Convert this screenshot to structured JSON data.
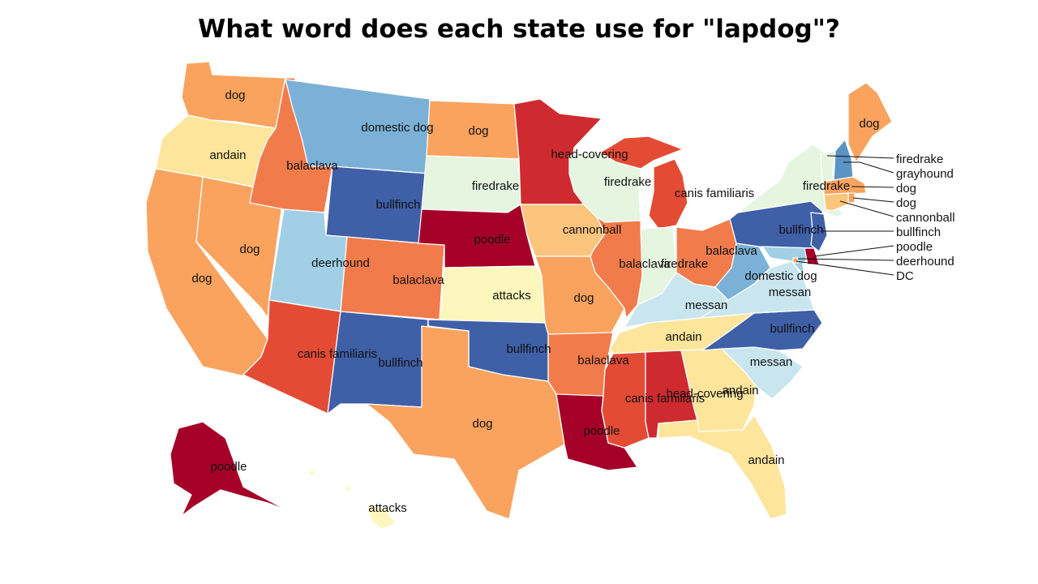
{
  "title": "What word does each state use for \"lapdog\"?",
  "colors": {
    "dog": "#f9a35e",
    "andain": "#fde59c",
    "domestic_dog": "#7bb1d6",
    "balaclava": "#f27b4c",
    "firedrake": "#e5f5e0",
    "head_covering": "#cf2a2f",
    "canis_familiaris": "#e34b35",
    "bullfinch": "#3f5fa7",
    "poodle": "#a50028",
    "deerhound": "#a1d0e6",
    "cannonball": "#fcc47c",
    "attacks": "#fdf7bd",
    "messan": "#c9e6ef",
    "grayhound": "#5b93c5",
    "dc": "#f9a35e"
  },
  "states": [
    {
      "id": "WA",
      "label": "dog",
      "color": "dog"
    },
    {
      "id": "OR",
      "label": "andain",
      "color": "andain"
    },
    {
      "id": "CA",
      "label": "dog",
      "color": "dog"
    },
    {
      "id": "NV",
      "label": "dog",
      "color": "dog"
    },
    {
      "id": "ID",
      "label": "balaclava",
      "color": "balaclava"
    },
    {
      "id": "MT",
      "label": "domestic dog",
      "color": "domestic_dog"
    },
    {
      "id": "WY",
      "label": "bullfinch",
      "color": "bullfinch"
    },
    {
      "id": "UT",
      "label": "deerhound",
      "color": "deerhound"
    },
    {
      "id": "CO",
      "label": "balaclava",
      "color": "balaclava"
    },
    {
      "id": "AZ",
      "label": "canis familiaris",
      "color": "canis_familiaris"
    },
    {
      "id": "NM",
      "label": "bullfinch",
      "color": "bullfinch"
    },
    {
      "id": "ND",
      "label": "dog",
      "color": "dog"
    },
    {
      "id": "SD",
      "label": "firedrake",
      "color": "firedrake"
    },
    {
      "id": "NE",
      "label": "poodle",
      "color": "poodle"
    },
    {
      "id": "KS",
      "label": "attacks",
      "color": "attacks"
    },
    {
      "id": "OK",
      "label": "bullfinch",
      "color": "bullfinch"
    },
    {
      "id": "TX",
      "label": "dog",
      "color": "dog"
    },
    {
      "id": "MN",
      "label": "head-covering",
      "color": "head_covering"
    },
    {
      "id": "IA",
      "label": "cannonball",
      "color": "cannonball"
    },
    {
      "id": "MO",
      "label": "dog",
      "color": "dog"
    },
    {
      "id": "AR",
      "label": "balaclava",
      "color": "balaclava"
    },
    {
      "id": "LA",
      "label": "poodle",
      "color": "poodle"
    },
    {
      "id": "WI",
      "label": "firedrake",
      "color": "firedrake"
    },
    {
      "id": "IL",
      "label": "balaclava",
      "color": "balaclava"
    },
    {
      "id": "MI",
      "label": "canis familiaris",
      "color": "canis_familiaris"
    },
    {
      "id": "IN",
      "label": "firedrake",
      "color": "firedrake"
    },
    {
      "id": "OH",
      "label": "balaclava",
      "color": "balaclava"
    },
    {
      "id": "KY",
      "label": "messan",
      "color": "messan"
    },
    {
      "id": "TN",
      "label": "andain",
      "color": "andain"
    },
    {
      "id": "MS",
      "label": "canis familiaris",
      "color": "canis_familiaris"
    },
    {
      "id": "AL",
      "label": "head-covering",
      "color": "head_covering"
    },
    {
      "id": "GA",
      "label": "andain",
      "color": "andain"
    },
    {
      "id": "FL",
      "label": "andain",
      "color": "andain"
    },
    {
      "id": "SC",
      "label": "messan",
      "color": "messan"
    },
    {
      "id": "NC",
      "label": "bullfinch",
      "color": "bullfinch"
    },
    {
      "id": "VA",
      "label": "messan",
      "color": "messan"
    },
    {
      "id": "WV",
      "label": "domestic dog",
      "color": "domestic_dog"
    },
    {
      "id": "PA",
      "label": "bullfinch",
      "color": "bullfinch"
    },
    {
      "id": "NY",
      "label": "firedrake",
      "color": "firedrake"
    },
    {
      "id": "ME",
      "label": "dog",
      "color": "dog"
    },
    {
      "id": "AK",
      "label": "poodle",
      "color": "poodle"
    },
    {
      "id": "HI",
      "label": "attacks",
      "color": "attacks"
    },
    {
      "id": "VT",
      "label": "firedrake",
      "color": "firedrake"
    },
    {
      "id": "NH",
      "label": "grayhound",
      "color": "grayhound"
    },
    {
      "id": "MA",
      "label": "dog",
      "color": "dog"
    },
    {
      "id": "RI",
      "label": "dog",
      "color": "dog"
    },
    {
      "id": "CT",
      "label": "cannonball",
      "color": "cannonball"
    },
    {
      "id": "NJ",
      "label": "bullfinch",
      "color": "bullfinch"
    },
    {
      "id": "DE",
      "label": "poodle",
      "color": "poodle"
    },
    {
      "id": "MD",
      "label": "deerhound",
      "color": "deerhound"
    },
    {
      "id": "DC",
      "label": "DC",
      "color": "dc"
    }
  ]
}
